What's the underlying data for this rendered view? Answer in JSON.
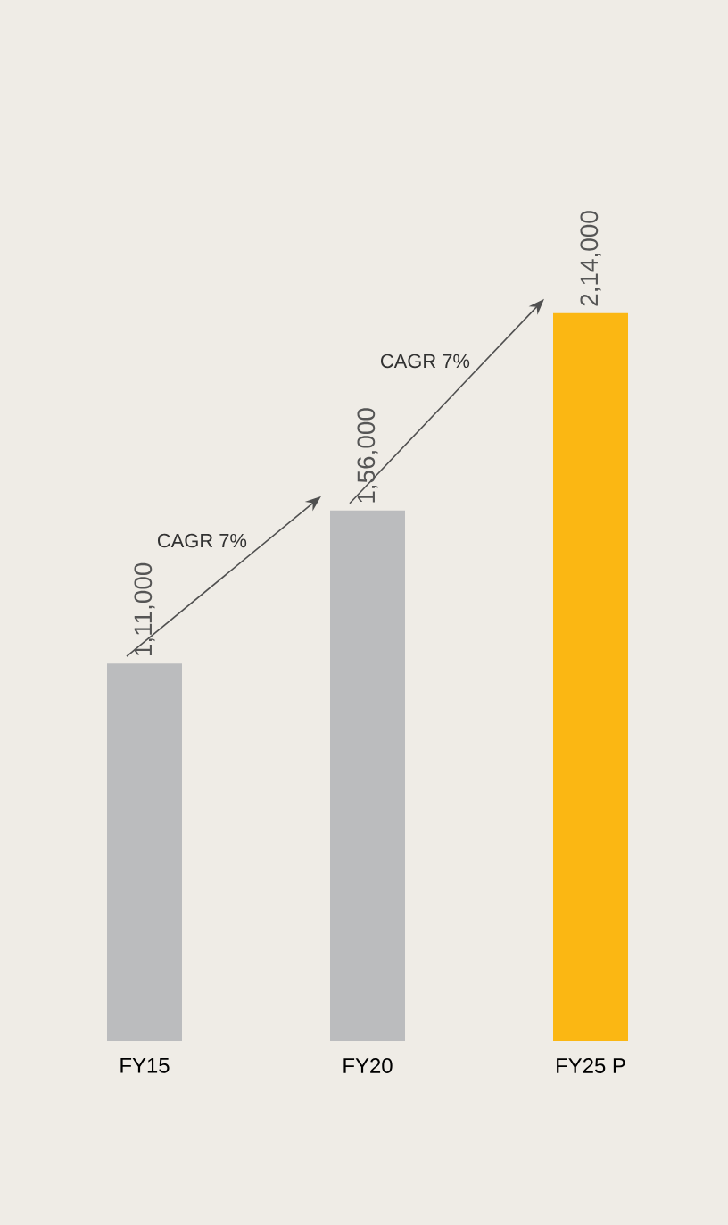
{
  "chart_data": {
    "type": "bar",
    "categories": [
      "FY15",
      "FY20",
      "FY25 P"
    ],
    "values": [
      111000,
      156000,
      214000
    ],
    "colors": [
      "#bbbcbe",
      "#bbbcbe",
      "#fbb713"
    ],
    "value_labels": [
      "1,11,000",
      "1,56,000",
      "2,14,000"
    ],
    "annotations": [
      "CAGR 7%",
      "CAGR 7%"
    ]
  }
}
